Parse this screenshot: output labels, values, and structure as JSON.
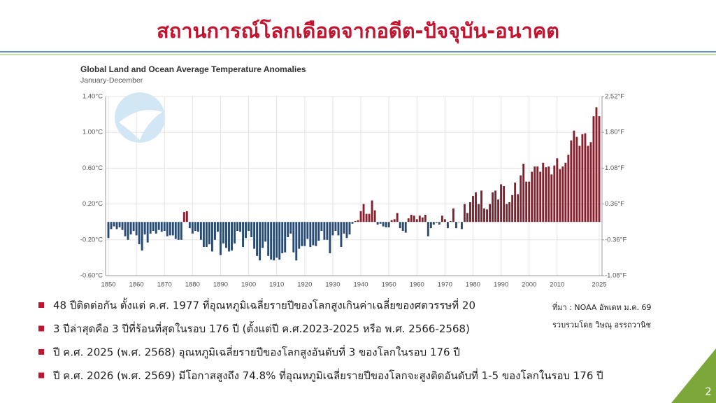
{
  "header": {
    "title": "สถานการณ์โลกเดือดจากอดีต-ปัจจุบัน-อนาคต"
  },
  "chart_data": {
    "type": "bar",
    "title": "Global Land and Ocean Average Temperature Anomalies",
    "subtitle": "January-December",
    "x": [
      1850,
      1851,
      1852,
      1853,
      1854,
      1855,
      1856,
      1857,
      1858,
      1859,
      1860,
      1861,
      1862,
      1863,
      1864,
      1865,
      1866,
      1867,
      1868,
      1869,
      1870,
      1871,
      1872,
      1873,
      1874,
      1875,
      1876,
      1877,
      1878,
      1879,
      1880,
      1881,
      1882,
      1883,
      1884,
      1885,
      1886,
      1887,
      1888,
      1889,
      1890,
      1891,
      1892,
      1893,
      1894,
      1895,
      1896,
      1897,
      1898,
      1899,
      1900,
      1901,
      1902,
      1903,
      1904,
      1905,
      1906,
      1907,
      1908,
      1909,
      1910,
      1911,
      1912,
      1913,
      1914,
      1915,
      1916,
      1917,
      1918,
      1919,
      1920,
      1921,
      1922,
      1923,
      1924,
      1925,
      1926,
      1927,
      1928,
      1929,
      1930,
      1931,
      1932,
      1933,
      1934,
      1935,
      1936,
      1937,
      1938,
      1939,
      1940,
      1941,
      1942,
      1943,
      1944,
      1945,
      1946,
      1947,
      1948,
      1949,
      1950,
      1951,
      1952,
      1953,
      1954,
      1955,
      1956,
      1957,
      1958,
      1959,
      1960,
      1961,
      1962,
      1963,
      1964,
      1965,
      1966,
      1967,
      1968,
      1969,
      1970,
      1971,
      1972,
      1973,
      1974,
      1975,
      1976,
      1977,
      1978,
      1979,
      1980,
      1981,
      1982,
      1983,
      1984,
      1985,
      1986,
      1987,
      1988,
      1989,
      1990,
      1991,
      1992,
      1993,
      1994,
      1995,
      1996,
      1997,
      1998,
      1999,
      2000,
      2001,
      2002,
      2003,
      2004,
      2005,
      2006,
      2007,
      2008,
      2009,
      2010,
      2011,
      2012,
      2013,
      2014,
      2015,
      2016,
      2017,
      2018,
      2019,
      2020,
      2021,
      2022,
      2023,
      2024,
      2025
    ],
    "values": [
      -0.18,
      -0.08,
      -0.05,
      -0.08,
      -0.06,
      -0.09,
      -0.16,
      -0.2,
      -0.14,
      -0.1,
      -0.15,
      -0.25,
      -0.32,
      -0.14,
      -0.23,
      -0.13,
      -0.1,
      -0.13,
      -0.09,
      -0.11,
      -0.1,
      -0.16,
      -0.15,
      -0.15,
      -0.19,
      -0.2,
      -0.2,
      0.11,
      0.12,
      -0.07,
      -0.13,
      -0.1,
      -0.11,
      -0.2,
      -0.28,
      -0.28,
      -0.25,
      -0.33,
      -0.2,
      -0.11,
      -0.37,
      -0.24,
      -0.29,
      -0.33,
      -0.32,
      -0.24,
      -0.1,
      -0.11,
      -0.28,
      -0.18,
      -0.1,
      -0.17,
      -0.3,
      -0.38,
      -0.43,
      -0.29,
      -0.22,
      -0.38,
      -0.42,
      -0.43,
      -0.4,
      -0.42,
      -0.35,
      -0.34,
      -0.17,
      -0.13,
      -0.34,
      -0.43,
      -0.3,
      -0.27,
      -0.27,
      -0.19,
      -0.28,
      -0.26,
      -0.27,
      -0.21,
      -0.1,
      -0.2,
      -0.2,
      -0.35,
      -0.15,
      -0.1,
      -0.15,
      -0.28,
      -0.13,
      -0.18,
      -0.14,
      -0.02,
      0.01,
      0.02,
      0.12,
      0.2,
      0.09,
      0.09,
      0.24,
      0.13,
      -0.03,
      -0.02,
      -0.05,
      -0.06,
      -0.06,
      0.02,
      0.03,
      0.1,
      -0.07,
      -0.1,
      -0.12,
      0.04,
      0.08,
      0.07,
      0.03,
      0.07,
      0.05,
      0.08,
      -0.16,
      -0.07,
      -0.03,
      -0.01,
      -0.03,
      0.07,
      0.03,
      -0.07,
      0.01,
      0.15,
      -0.07,
      0.0,
      -0.08,
      0.2,
      0.1,
      0.22,
      0.29,
      0.33,
      0.2,
      0.35,
      0.15,
      0.14,
      0.2,
      0.33,
      0.35,
      0.25,
      0.42,
      0.4,
      0.2,
      0.22,
      0.3,
      0.44,
      0.31,
      0.52,
      0.65,
      0.45,
      0.45,
      0.56,
      0.62,
      0.62,
      0.56,
      0.66,
      0.61,
      0.62,
      0.53,
      0.63,
      0.71,
      0.59,
      0.62,
      0.66,
      0.75,
      0.91,
      1.02,
      0.95,
      0.85,
      0.98,
      0.99,
      0.85,
      0.89,
      1.18,
      1.28,
      1.18
    ],
    "colors": {
      "positive": "#8b1e2d",
      "negative": "#2b4a6f"
    },
    "xlim": [
      1849,
      2026
    ],
    "xticks": [
      1850,
      1860,
      1870,
      1880,
      1890,
      1900,
      1910,
      1920,
      1930,
      1940,
      1950,
      1960,
      1970,
      1980,
      1990,
      2000,
      2010,
      2025
    ],
    "ylim": [
      -0.6,
      1.4
    ],
    "yticks": [
      {
        "value": -0.6,
        "label": "-0.60°C"
      },
      {
        "value": -0.2,
        "label": "-0.20°C"
      },
      {
        "value": 0.2,
        "label": "0.20°C"
      },
      {
        "value": 0.6,
        "label": "0.60°C"
      },
      {
        "value": 1.0,
        "label": "1.00°C"
      },
      {
        "value": 1.4,
        "label": "1.40°C"
      }
    ],
    "y2lim": [
      -1.08,
      2.52
    ],
    "y2ticks": [
      {
        "value": -1.08,
        "label": "-1.08°F"
      },
      {
        "value": -0.36,
        "label": "-0.36°F"
      },
      {
        "value": 0.36,
        "label": "0.36°F"
      },
      {
        "value": 1.08,
        "label": "1.08°F"
      },
      {
        "value": 1.8,
        "label": "1.80°F"
      },
      {
        "value": 2.52,
        "label": "2.52°F"
      }
    ],
    "grid": true
  },
  "bullets": [
    "48 ปีติดต่อกัน ตั้งแต่ ค.ศ. 1977 ที่อุณหภูมิเฉลี่ยรายปีของโลกสูงเกินค่าเฉลี่ยของศตวรรษที่ 20",
    "3 ปีล่าสุดคือ 3 ปีที่ร้อนที่สุดในรอบ 176 ปี (ตั้งแต่ปี ค.ศ.2023-2025 หรือ พ.ศ. 2566-2568)",
    "ปี ค.ศ. 2025 (พ.ศ. 2568) อุณหภูมิเฉลี่ยรายปีของโลกสูงอันดับที่ 3 ของโลกในรอบ 176 ปี",
    "ปี ค.ศ. 2026 (พ.ศ. 2569) มีโอกาสสูงถึง 74.8% ที่อุณหภูมิเฉลี่ยรายปีของโลกจะสูงติดอันดับที่ 1-5 ของโลกในรอบ 176 ปี"
  ],
  "source": [
    "ที่มา : NOAA อัพเดท ม.ค. 69",
    "รวบรวมโดย วิษณุ อรรถวานิช"
  ],
  "page_number": "2"
}
